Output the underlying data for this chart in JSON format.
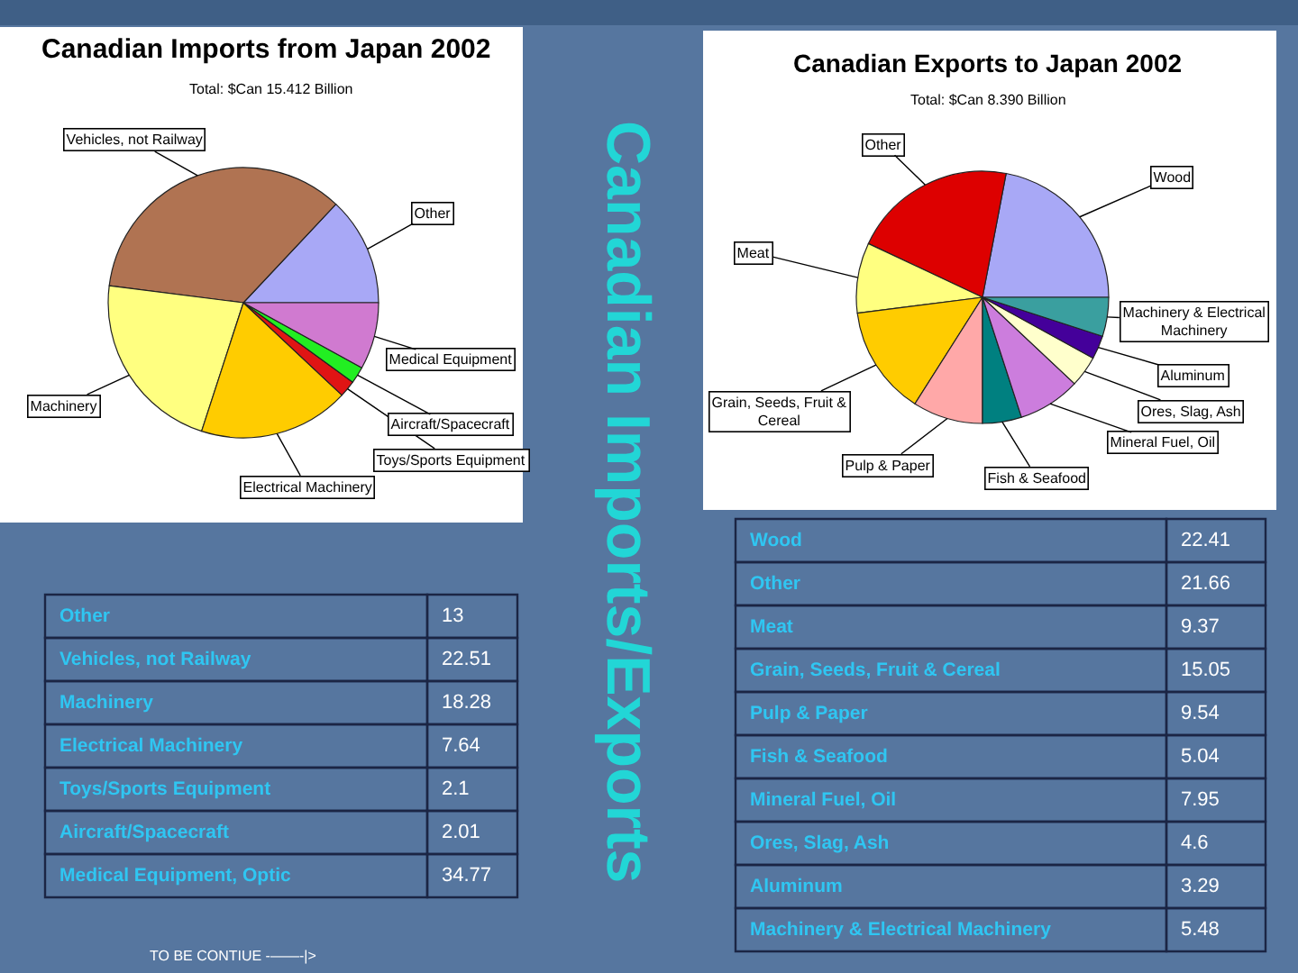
{
  "chart_data": [
    {
      "type": "pie",
      "title": "Canadian Imports from Japan 2002",
      "subtitle": "Total: $Can 15.412 Billion",
      "categories": [
        "Other",
        "Vehicles, not Railway",
        "Machinery",
        "Electrical Machinery",
        "Toys/Sports Equipment",
        "Aircraft/Spacecraft",
        "Medical Equipment"
      ],
      "values": [
        13,
        35,
        22,
        18,
        2,
        2,
        8
      ],
      "colors": [
        "#a8a8f6",
        "#b07352",
        "#ffff80",
        "#ffcc00",
        "#e01414",
        "#22ee22",
        "#d07ad0"
      ]
    },
    {
      "type": "other",
      "categories": [
        "Other",
        "Vehicles, not Railway",
        "Machinery",
        "Electrical Machinery",
        "Toys/Sports Equipment",
        "Aircraft/Spacecraft",
        "Medical Equipment, Optic"
      ],
      "values": [
        13,
        22.51,
        18.28,
        7.64,
        2.1,
        2.01,
        34.77
      ],
      "data_labels": true,
      "annotations": [
        "TO BE CONTIUE -——-|>"
      ]
    },
    {
      "type": "other",
      "title": "Canadian Imports/Exports"
    },
    {
      "type": "pie",
      "title": "Canadian Exports to Japan 2002",
      "subtitle": "Total: $Can 8.390 Billion",
      "categories": [
        "Wood",
        "Other",
        "Meat",
        "Grain, Seeds, Fruit & Cereal",
        "Pulp & Paper",
        "Fish & Seafood",
        "Mineral Fuel, Oil",
        "Ores, Slag, Ash",
        "Aluminum",
        "Machinery & Electrical Machinery"
      ],
      "values": [
        22,
        21,
        9,
        14,
        9,
        5,
        8,
        4,
        3,
        5
      ],
      "colors": [
        "#a8a8f6",
        "#dd0000",
        "#ffff80",
        "#ffcc00",
        "#ffa8a8",
        "#008080",
        "#cc7ddd",
        "#ffffcc",
        "#44009a",
        "#3a9f9f"
      ]
    },
    {
      "type": "other",
      "categories": [
        "Wood",
        "Other",
        "Meat",
        "Grain, Seeds, Fruit & Cereal",
        "Pulp & Paper",
        "Fish & Seafood",
        "Mineral Fuel, Oil",
        "Ores, Slag, Ash",
        "Aluminum",
        "Machinery & Electrical Machinery"
      ],
      "values": [
        22.41,
        21.66,
        9.37,
        15.05,
        9.54,
        5.04,
        7.95,
        4.6,
        3.29,
        5.48
      ],
      "data_labels": true
    }
  ]
}
